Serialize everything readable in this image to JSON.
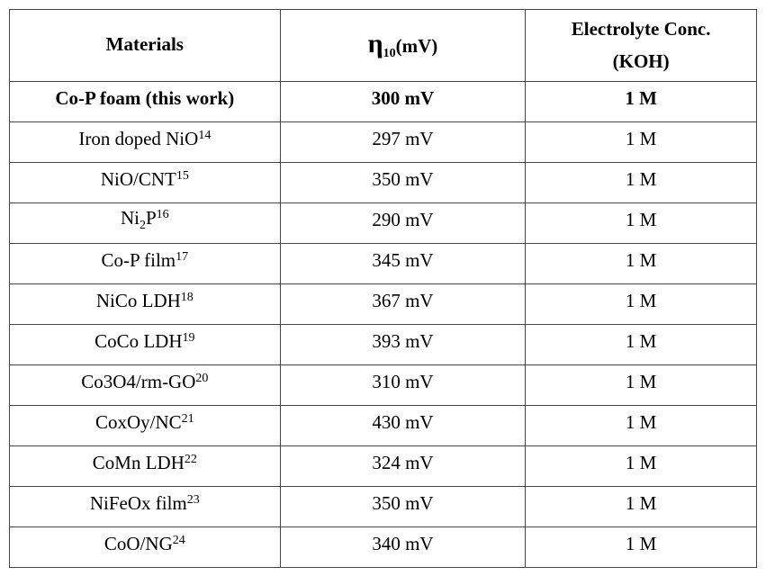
{
  "table": {
    "header": {
      "materials": "Materials",
      "eta": [
        {
          "text": "η"
        },
        {
          "sub": "10"
        },
        {
          "text": "(mV)"
        }
      ],
      "electrolyte": [
        "Electrolyte Conc.",
        "(KOH)"
      ]
    },
    "rows": [
      {
        "material": [
          {
            "text": "Co-P foam (this work)"
          }
        ],
        "eta": "300 mV",
        "conc": "1 M"
      },
      {
        "material": [
          {
            "text": "Iron doped NiO"
          },
          {
            "sup": "14"
          }
        ],
        "eta": "297 mV",
        "conc": "1 M"
      },
      {
        "material": [
          {
            "text": "NiO/CNT"
          },
          {
            "sup": "15"
          }
        ],
        "eta": "350 mV",
        "conc": "1 M"
      },
      {
        "material": [
          {
            "text": "Ni"
          },
          {
            "sub": "2"
          },
          {
            "text": "P"
          },
          {
            "sup": "16"
          }
        ],
        "eta": "290 mV",
        "conc": "1 M"
      },
      {
        "material": [
          {
            "text": "Co-P film"
          },
          {
            "sup": "17"
          }
        ],
        "eta": "345 mV",
        "conc": "1 M"
      },
      {
        "material": [
          {
            "text": "NiCo LDH"
          },
          {
            "sup": "18"
          }
        ],
        "eta": "367 mV",
        "conc": "1 M"
      },
      {
        "material": [
          {
            "text": "CoCo LDH"
          },
          {
            "sup": "19"
          }
        ],
        "eta": "393 mV",
        "conc": "1 M"
      },
      {
        "material": [
          {
            "text": "Co3O4/rm-GO"
          },
          {
            "sup": "20"
          }
        ],
        "eta": "310 mV",
        "conc": "1 M"
      },
      {
        "material": [
          {
            "text": "CoxOy/NC"
          },
          {
            "sup": "21"
          }
        ],
        "eta": "430 mV",
        "conc": "1 M"
      },
      {
        "material": [
          {
            "text": "CoMn LDH"
          },
          {
            "sup": "22"
          }
        ],
        "eta": "324 mV",
        "conc": "1 M"
      },
      {
        "material": [
          {
            "text": "NiFeOx film"
          },
          {
            "sup": "23"
          }
        ],
        "eta": "350 mV",
        "conc": "1 M"
      },
      {
        "material": [
          {
            "text": "CoO/NG"
          },
          {
            "sup": "24"
          }
        ],
        "eta": "340 mV",
        "conc": "1 M"
      }
    ]
  }
}
